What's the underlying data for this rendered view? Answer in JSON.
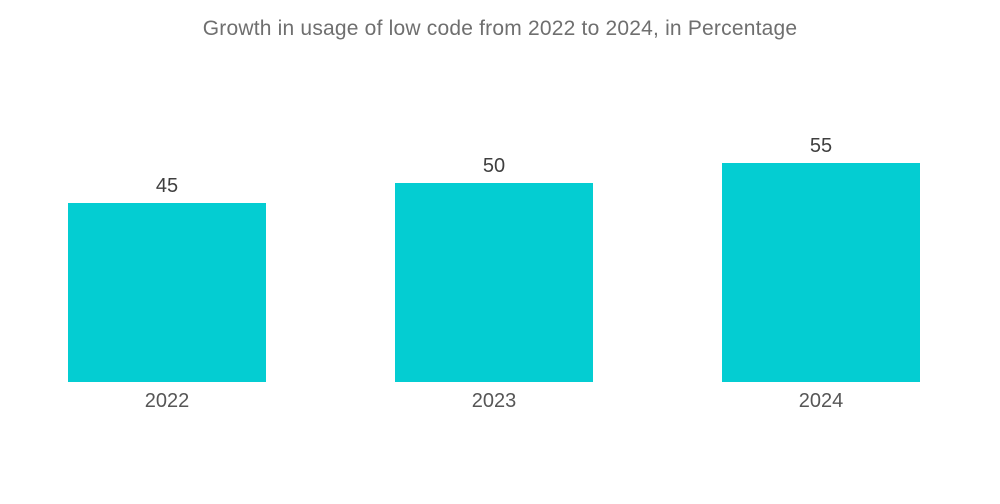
{
  "chart_data": {
    "type": "bar",
    "title": "Growth in usage of low code from 2022 to 2024, in Percentage",
    "categories": [
      "2022",
      "2023",
      "2024"
    ],
    "values": [
      45,
      50,
      55
    ],
    "xlabel": "",
    "ylabel": "",
    "ylim": [
      0,
      60
    ],
    "grid": false,
    "legend": false,
    "colors": {
      "bar": "#04cdd2",
      "value_label": "#3f3f3f",
      "category_label": "#565656",
      "title": "#6f6f6f",
      "background": "#ffffff"
    }
  }
}
